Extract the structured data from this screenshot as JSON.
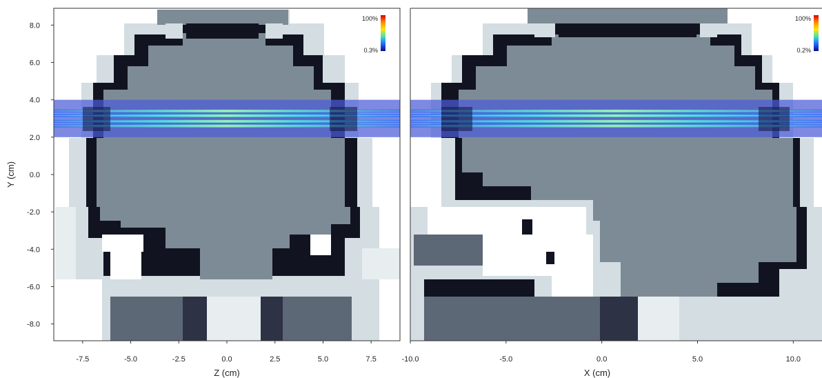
{
  "chart_data": [
    {
      "type": "heatmap",
      "title": "",
      "xlabel": "Z (cm)",
      "ylabel": "Y (cm)",
      "xlim": [
        -9.0,
        9.0
      ],
      "ylim": [
        -8.9,
        8.9
      ],
      "xticks": [
        "-7.5",
        "-5.0",
        "-2.5",
        "0.0",
        "2.5",
        "5.0",
        "7.5"
      ],
      "xtick_values": [
        -7.5,
        -5.0,
        -2.5,
        0.0,
        2.5,
        5.0,
        7.5
      ],
      "yticks": [
        "8.0",
        "6.0",
        "4.0",
        "2.0",
        "0.0",
        "-2.0",
        "-4.0",
        "-6.0",
        "-8.0"
      ],
      "ytick_values": [
        8.0,
        6.0,
        4.0,
        2.0,
        0.0,
        -2.0,
        -4.0,
        -6.0,
        -8.0
      ],
      "colorbar": {
        "max_label": "100%",
        "min_label": "0.3%",
        "colors": [
          "#d40000",
          "#ff8c00",
          "#ffe600",
          "#40e0c0",
          "#1e6cff",
          "#0a0a8a"
        ]
      },
      "dose_band": {
        "y_min": 2.0,
        "y_max": 4.0,
        "beam_lines_y": [
          2.6,
          2.85,
          3.15,
          3.4
        ]
      },
      "tissue_legend": {
        "bone": "#111420",
        "soft_tissue": "#7d8b96",
        "muscle": "#5d6876",
        "air": "#ffffff",
        "fat": "#d3dde2"
      }
    },
    {
      "type": "heatmap",
      "title": "",
      "xlabel": "X (cm)",
      "ylabel": "",
      "xlim": [
        -10.0,
        11.5
      ],
      "ylim": [
        -8.9,
        8.9
      ],
      "xticks": [
        "-10.0",
        "-5.0",
        "0.0",
        "5.0",
        "10.0"
      ],
      "xtick_values": [
        -10.0,
        -5.0,
        0.0,
        5.0,
        10.0
      ],
      "yticks": [],
      "colorbar": {
        "max_label": "100%",
        "min_label": "0.2%",
        "colors": [
          "#d40000",
          "#ff8c00",
          "#ffe600",
          "#40e0c0",
          "#1e6cff",
          "#0a0a8a"
        ]
      },
      "dose_band": {
        "y_min": 2.0,
        "y_max": 4.0,
        "beam_lines_y": [
          2.6,
          2.85,
          3.15,
          3.4
        ]
      }
    }
  ]
}
